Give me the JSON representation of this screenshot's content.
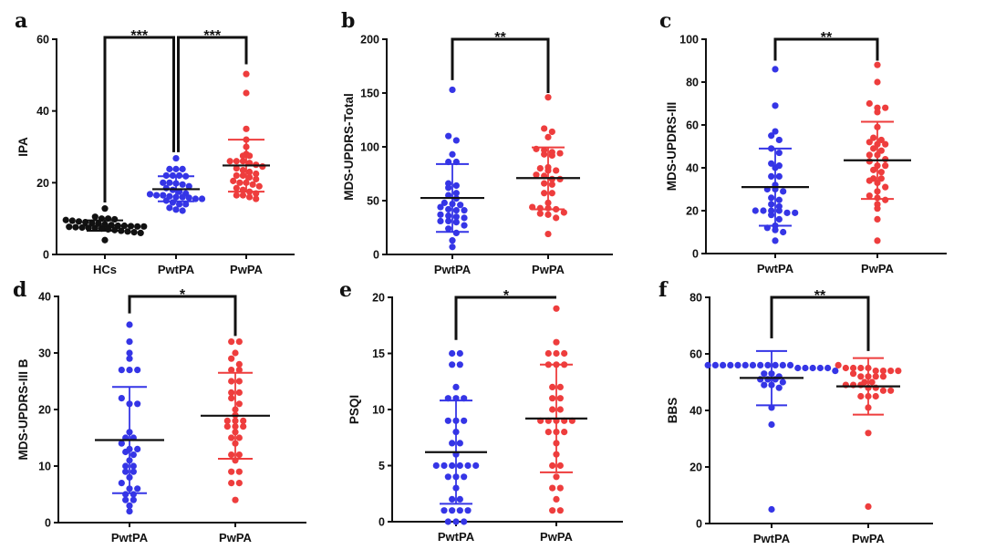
{
  "figure": {
    "colors": {
      "HCs": "#111111",
      "PwtPA": "#3535e6",
      "PwPA": "#ee3d3d",
      "mean_line": "#111111"
    }
  },
  "chart_data": [
    {
      "panel": "a",
      "type": "scatter",
      "title": "",
      "xlabel": "",
      "ylabel": "IPA",
      "ylim": [
        0,
        60
      ],
      "yticks": [
        "0",
        "20",
        "40",
        "60"
      ],
      "categories": [
        "HCs",
        "PwtPA",
        "PwPA"
      ],
      "grid": false,
      "series": [
        {
          "name": "HCs",
          "mean": 8.0,
          "sd_low": 6.6,
          "sd_high": 9.5,
          "values": [
            12.8,
            10.5,
            10.0,
            10.0,
            9.8,
            9.6,
            9.4,
            9.2,
            9.0,
            8.8,
            8.6,
            8.4,
            8.2,
            8.0,
            8.0,
            7.9,
            7.8,
            7.8,
            7.7,
            7.6,
            7.5,
            7.4,
            7.3,
            7.2,
            7.0,
            6.8,
            6.6,
            6.4,
            6.2,
            6.0,
            4.0
          ]
        },
        {
          "name": "PwtPA",
          "mean": 18.2,
          "sd_low": 14.8,
          "sd_high": 21.8,
          "values": [
            26.8,
            23.8,
            23.8,
            23.8,
            22.0,
            22.0,
            22.0,
            21.8,
            20.0,
            20.0,
            19.8,
            19.5,
            19.0,
            18.5,
            18.0,
            17.5,
            17.0,
            16.8,
            16.5,
            16.5,
            16.2,
            16.0,
            16.0,
            15.8,
            15.5,
            15.5,
            15.0,
            14.5,
            14.0,
            14.0,
            13.0,
            12.5,
            12.2
          ]
        },
        {
          "name": "PwPA",
          "mean": 24.8,
          "sd_low": 17.5,
          "sd_high": 32.0,
          "values": [
            50.3,
            45.0,
            35.0,
            32.0,
            30.0,
            28.0,
            27.5,
            27.5,
            26.0,
            26.0,
            26.0,
            25.5,
            25.0,
            24.5,
            24.0,
            23.5,
            23.0,
            22.5,
            22.0,
            22.0,
            21.5,
            21.0,
            20.5,
            20.0,
            20.0,
            19.5,
            19.0,
            18.5,
            18.0,
            17.5,
            17.0,
            16.5,
            16.5,
            16.0,
            15.5
          ]
        }
      ],
      "annotations": [
        {
          "from": "HCs",
          "to": "PwtPA",
          "label": "***"
        },
        {
          "from": "PwtPA",
          "to": "PwPA",
          "label": "***"
        }
      ]
    },
    {
      "panel": "b",
      "type": "scatter",
      "title": "",
      "xlabel": "",
      "ylabel": "MDS-UPDRS-Total",
      "ylim": [
        0,
        200
      ],
      "yticks": [
        "0",
        "50",
        "100",
        "150",
        "200"
      ],
      "categories": [
        "PwtPA",
        "PwPA"
      ],
      "grid": false,
      "series": [
        {
          "name": "PwtPA",
          "mean": 52.5,
          "sd_low": 21.0,
          "sd_high": 84.0,
          "values": [
            153,
            110,
            106,
            93,
            86,
            86,
            66,
            64,
            62,
            57,
            55,
            52,
            48,
            47,
            46,
            44,
            42,
            41,
            41,
            37,
            36,
            35,
            34,
            31,
            31,
            30,
            27,
            24,
            20,
            13,
            7
          ]
        },
        {
          "name": "PwPA",
          "mean": 71.0,
          "sd_low": 42.0,
          "sd_high": 99.5,
          "values": [
            146,
            117,
            114,
            109,
            98,
            97,
            95,
            94,
            93,
            92,
            81,
            80,
            78,
            78,
            74,
            73,
            70,
            70,
            66,
            65,
            57,
            57,
            48,
            44,
            43,
            43,
            42,
            39,
            38,
            37,
            34,
            19
          ]
        }
      ],
      "annotations": [
        {
          "from": "PwtPA",
          "to": "PwPA",
          "label": "**"
        }
      ]
    },
    {
      "panel": "c",
      "type": "scatter",
      "title": "",
      "xlabel": "",
      "ylabel": "MDS-UPDRS-III",
      "ylim": [
        0,
        100
      ],
      "yticks": [
        "0",
        "20",
        "40",
        "60",
        "80",
        "100"
      ],
      "categories": [
        "PwtPA",
        "PwPA"
      ],
      "grid": false,
      "series": [
        {
          "name": "PwtPA",
          "mean": 31.0,
          "sd_low": 13.0,
          "sd_high": 49.0,
          "values": [
            86,
            69,
            57,
            55,
            53,
            49,
            47,
            42,
            41,
            40,
            36,
            36,
            32,
            30,
            30,
            29,
            26,
            25,
            23,
            22,
            20,
            20,
            20,
            20,
            19,
            19,
            18,
            16,
            13,
            12,
            11,
            10,
            6
          ]
        },
        {
          "name": "PwPA",
          "mean": 43.5,
          "sd_low": 25.5,
          "sd_high": 61.5,
          "values": [
            88,
            80,
            70,
            68,
            68,
            66,
            59,
            54,
            53,
            52,
            51,
            51,
            49,
            48,
            46,
            46,
            44,
            43,
            41,
            41,
            39,
            38,
            35,
            35,
            34,
            33,
            31,
            29,
            27,
            26,
            25,
            23,
            21,
            16,
            6
          ]
        }
      ],
      "annotations": [
        {
          "from": "PwtPA",
          "to": "PwPA",
          "label": "**"
        }
      ]
    },
    {
      "panel": "d",
      "type": "scatter",
      "title": "",
      "xlabel": "",
      "ylabel": "MDS-UPDRS-III B",
      "ylim": [
        0,
        40
      ],
      "yticks": [
        "0",
        "10",
        "20",
        "30",
        "40"
      ],
      "categories": [
        "PwtPA",
        "PwPA"
      ],
      "grid": false,
      "series": [
        {
          "name": "PwtPA",
          "mean": 14.6,
          "sd_low": 5.2,
          "sd_high": 24.0,
          "values": [
            35,
            32,
            30,
            29,
            27,
            27,
            27,
            22,
            21,
            21,
            16,
            15,
            15,
            14,
            13,
            13,
            12.5,
            12,
            11,
            10,
            10,
            9,
            9,
            8,
            7,
            6,
            6,
            5,
            5,
            4,
            4,
            3,
            2
          ]
        },
        {
          "name": "PwPA",
          "mean": 18.9,
          "sd_low": 11.3,
          "sd_high": 26.5,
          "values": [
            32,
            32,
            30,
            29,
            28,
            27,
            27,
            25,
            25,
            23,
            23,
            22,
            21,
            20,
            19,
            18,
            18,
            18,
            17,
            17,
            17,
            16,
            15,
            15,
            14,
            12,
            12,
            11,
            9,
            9,
            7,
            7,
            4
          ]
        }
      ],
      "annotations": [
        {
          "from": "PwtPA",
          "to": "PwPA",
          "label": "*"
        }
      ]
    },
    {
      "panel": "e",
      "type": "scatter",
      "title": "",
      "xlabel": "",
      "ylabel": "PSQI",
      "ylim": [
        0,
        20
      ],
      "yticks": [
        "0",
        "5",
        "10",
        "15",
        "20"
      ],
      "categories": [
        "PwtPA",
        "PwPA"
      ],
      "grid": false,
      "series": [
        {
          "name": "PwtPA",
          "mean": 6.2,
          "sd_low": 1.6,
          "sd_high": 10.8,
          "values": [
            15,
            15,
            14,
            14,
            12,
            11,
            11,
            11,
            9,
            9,
            9,
            8,
            7,
            7,
            6,
            5,
            5,
            5,
            5,
            5,
            5,
            4,
            4,
            4,
            3,
            2,
            2,
            1,
            1,
            1,
            1,
            0,
            0,
            0
          ]
        },
        {
          "name": "PwPA",
          "mean": 9.2,
          "sd_low": 4.4,
          "sd_high": 14.0,
          "values": [
            19,
            16,
            15,
            15,
            15,
            14,
            14,
            14,
            12,
            12,
            11,
            11,
            10,
            10,
            9,
            9,
            9,
            9,
            9,
            8,
            8,
            8,
            7,
            6,
            5,
            5,
            4,
            3,
            3,
            2,
            1,
            1
          ]
        }
      ],
      "annotations": [
        {
          "from": "PwtPA",
          "to": "PwPA",
          "label": "*"
        }
      ]
    },
    {
      "panel": "f",
      "type": "scatter",
      "title": "",
      "xlabel": "",
      "ylabel": "BBS",
      "ylim": [
        0,
        80
      ],
      "yticks": [
        "0",
        "20",
        "40",
        "60",
        "80"
      ],
      "categories": [
        "PwtPA",
        "PwPA"
      ],
      "grid": false,
      "series": [
        {
          "name": "PwtPA",
          "mean": 51.5,
          "sd_low": 41.8,
          "sd_high": 61.0,
          "values": [
            56,
            56,
            56,
            56,
            56,
            56,
            56,
            56,
            56,
            56,
            56,
            56,
            55,
            55,
            55,
            55,
            55,
            54,
            53,
            53,
            52,
            51,
            51,
            51,
            50,
            49,
            49,
            48,
            41,
            35,
            5
          ]
        },
        {
          "name": "PwPA",
          "mean": 48.5,
          "sd_low": 38.5,
          "sd_high": 58.5,
          "values": [
            56,
            55,
            55,
            55,
            55,
            54,
            54,
            54,
            54,
            53,
            52,
            52,
            52,
            52,
            50,
            50,
            49,
            49,
            49,
            48,
            48,
            47,
            47,
            45,
            45,
            45,
            41,
            32,
            6
          ]
        }
      ],
      "annotations": [
        {
          "from": "PwtPA",
          "to": "PwPA",
          "label": "**"
        }
      ]
    }
  ]
}
